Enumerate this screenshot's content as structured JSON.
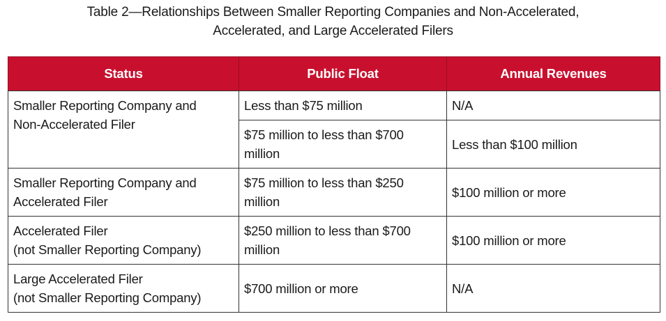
{
  "caption": {
    "line1": "Table 2—Relationships Between Smaller Reporting Companies and Non-Accelerated,",
    "line2": "Accelerated, and Large Accelerated Filers"
  },
  "headers": {
    "status": "Status",
    "public_float": "Public Float",
    "annual_revenues": "Annual Revenues"
  },
  "rows": [
    {
      "status_line1": "Smaller Reporting Company and",
      "status_line2": "Non-Accelerated Filer",
      "float_a": "Less than $75 million",
      "revenue_a": "N/A",
      "float_b_line1": "$75 million to less than $700",
      "float_b_line2": "million",
      "revenue_b": "Less than $100 million"
    },
    {
      "status_line1": "Smaller Reporting Company and",
      "status_line2": "Accelerated Filer",
      "float_line1": "$75 million to less than $250",
      "float_line2": "million",
      "revenue": "$100 million or more"
    },
    {
      "status_line1": "Accelerated Filer",
      "status_line2": "(not Smaller Reporting Company)",
      "float_line1": "$250 million to less than $700",
      "float_line2": "million",
      "revenue": "$100 million or more"
    },
    {
      "status_line1": "Large Accelerated Filer",
      "status_line2": "(not Smaller Reporting Company)",
      "float_line1": "$700 million or more",
      "revenue": "N/A"
    }
  ]
}
